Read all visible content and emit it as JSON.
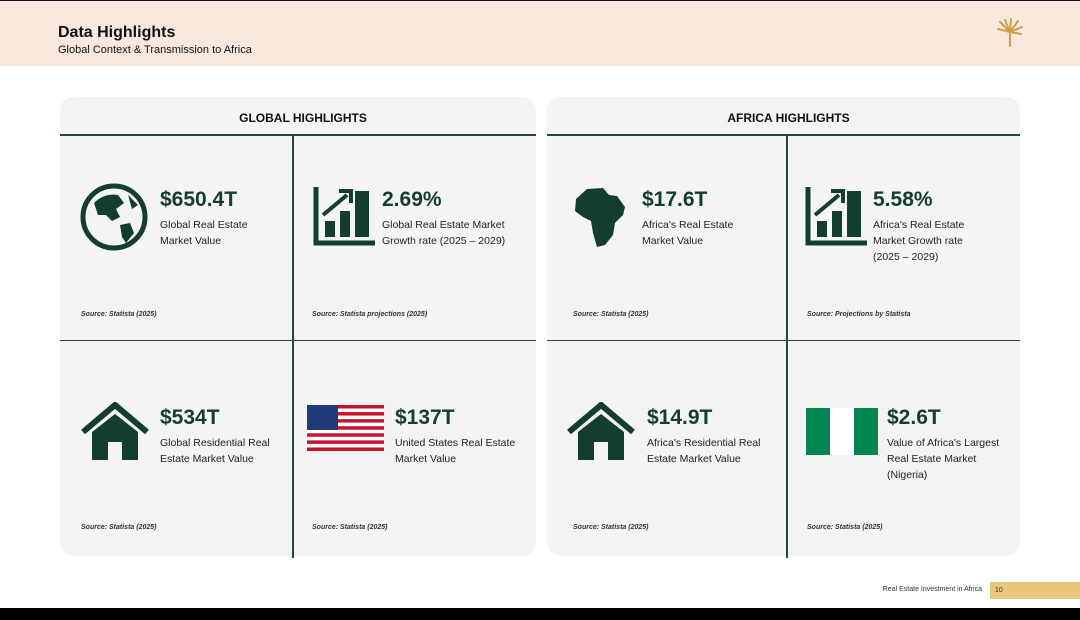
{
  "header": {
    "title": "Data Highlights",
    "subtitle": "Global Context & Transmission to Africa"
  },
  "panels": [
    {
      "title": "GLOBAL HIGHLIGHTS",
      "cells": [
        {
          "value": "$650.4T",
          "label_lines": [
            "Global Real Estate",
            "Market Value"
          ],
          "source": "Source: Statista (2025)"
        },
        {
          "value": "2.69%",
          "label_lines": [
            "Global Real Estate Market",
            "Growth rate (2025 – 2029)"
          ],
          "source": "Source: Statista projections (2025)"
        },
        {
          "value": "$534T",
          "label_lines": [
            "Global Residential Real",
            "Estate Market Value"
          ],
          "source": "Source: Statista (2025)"
        },
        {
          "value": "$137T",
          "label_lines": [
            "United States Real Estate",
            "Market Value"
          ],
          "source": "Source: Statista (2025)"
        }
      ]
    },
    {
      "title": "AFRICA HIGHLIGHTS",
      "cells": [
        {
          "value": "$17.6T",
          "label_lines": [
            "Africa's Real Estate",
            "Market Value"
          ],
          "source": "Source: Statista (2025)"
        },
        {
          "value": "5.58%",
          "label_lines": [
            "Africa's Real Estate",
            "Market Growth rate",
            "(2025 – 2029)"
          ],
          "source": "Source: Projections by Statista"
        },
        {
          "value": "$14.9T",
          "label_lines": [
            "Africa's Residential Real",
            "Estate Market Value"
          ],
          "source": "Source: Statista (2025)"
        },
        {
          "value": "$2.6T",
          "label_lines": [
            "Value of Africa's Largest",
            "Real Estate Market",
            "(Nigeria)"
          ],
          "source": "Source: Statista (2025)"
        }
      ]
    }
  ],
  "footer": {
    "text": "Real Estate Investment in Africa",
    "page": "10"
  }
}
